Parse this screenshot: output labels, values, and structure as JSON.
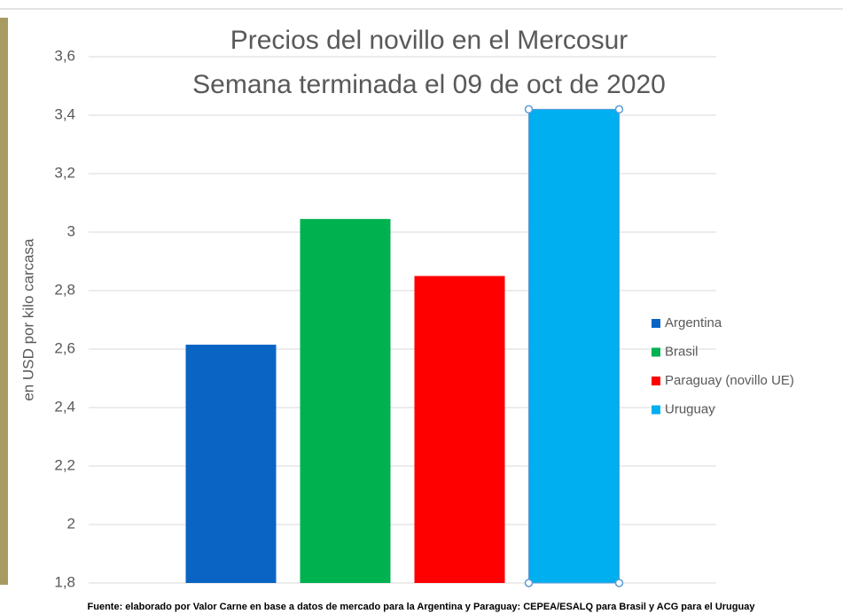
{
  "chart_data": {
    "type": "bar",
    "title": [
      "Precios del novillo en el Mercosur",
      "Semana terminada el 09 de oct de 2020"
    ],
    "y_label": "en USD por kilo carcasa",
    "note": "Fuente: elaborado por Valor Carne en base a datos de mercado para la Argentina y Paraguay: CEPEA/ESALQ para Brasil y ACG para el Uruguay",
    "categories": [
      null
    ],
    "series": [
      {
        "name": "Argentina",
        "color": "#0a64c4",
        "values": [
          2.615
        ]
      },
      {
        "name": "Brasil",
        "color": "#00b14f",
        "values": [
          3.045
        ]
      },
      {
        "name": "Paraguay (novillo UE)",
        "color": "#ff0000",
        "values": [
          2.85
        ]
      },
      {
        "name": "Uruguay",
        "color": "#00aff0",
        "values": [
          3.42
        ]
      }
    ],
    "ylim": [
      1.8,
      3.6
    ],
    "yticks": [
      {
        "value": 1.8,
        "label": "1,8"
      },
      2,
      {
        "value": 2.2,
        "label": "2,2"
      },
      {
        "value": 2.4,
        "label": "2,4"
      },
      {
        "value": 2.6,
        "label": "2,6"
      },
      {
        "value": 2.8,
        "label": "2,8"
      },
      3,
      {
        "value": 3.2,
        "label": "3,2"
      },
      {
        "value": 3.4,
        "label": "3,4"
      },
      {
        "value": 3.6,
        "label": "3,6"
      }
    ],
    "grid": true,
    "legend": "right"
  }
}
